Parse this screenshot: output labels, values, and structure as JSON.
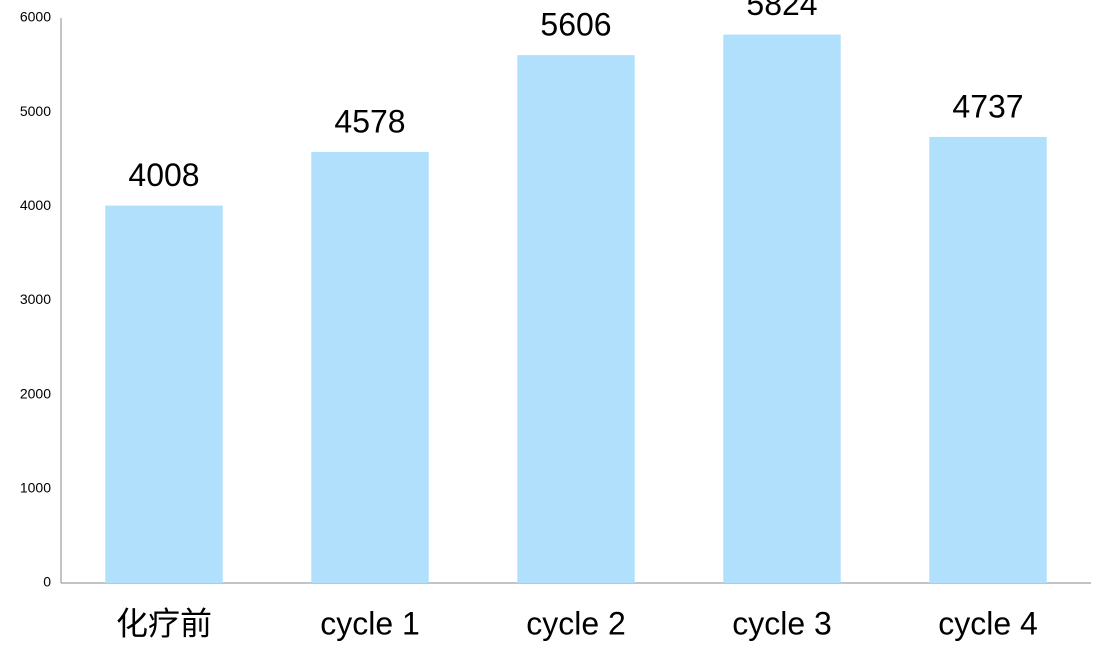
{
  "chart_data": {
    "type": "bar",
    "categories": [
      "化疗前",
      "cycle 1",
      "cycle 2",
      "cycle 3",
      "cycle 4"
    ],
    "values": [
      4008,
      4578,
      5606,
      5824,
      4737
    ],
    "color": "#b0e0fc",
    "ylim": [
      0,
      6000
    ],
    "yticks": [
      0,
      1000,
      2000,
      3000,
      4000,
      5000,
      6000
    ],
    "grid": false
  }
}
